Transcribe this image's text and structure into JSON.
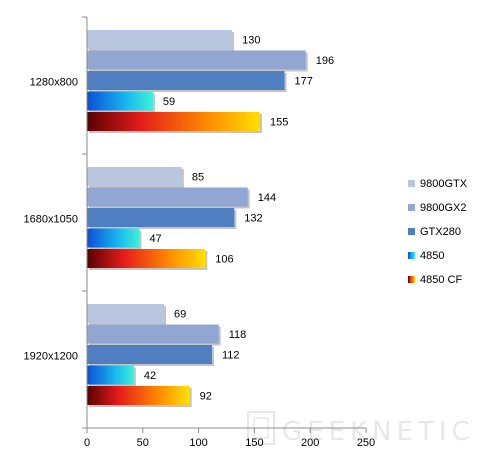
{
  "chart_data": {
    "type": "bar",
    "orientation": "horizontal",
    "categories": [
      "1280x800",
      "1680x1050",
      "1920x1200"
    ],
    "series": [
      {
        "name": "9800GTX",
        "values": [
          130,
          85,
          69
        ],
        "color": "#b8c6e0"
      },
      {
        "name": "9800GX2",
        "values": [
          196,
          144,
          118
        ],
        "color": "#92a6d2"
      },
      {
        "name": "GTX280",
        "values": [
          177,
          132,
          112
        ],
        "color": "#4f7fc0"
      },
      {
        "name": "4850",
        "values": [
          59,
          47,
          42
        ],
        "gradient": [
          "#0a4fd8",
          "#19b8ee",
          "#3ff0d8"
        ]
      },
      {
        "name": "4850 CF",
        "values": [
          155,
          106,
          92
        ],
        "gradient": [
          "#5a0000",
          "#e21a1a",
          "#ff8c00",
          "#ffe000"
        ]
      }
    ],
    "xlim": [
      0,
      250
    ],
    "xticks": [
      0,
      50,
      100,
      150,
      200,
      250
    ],
    "legend_position": "right",
    "grid": false
  },
  "watermark": "GEEKNETIC"
}
